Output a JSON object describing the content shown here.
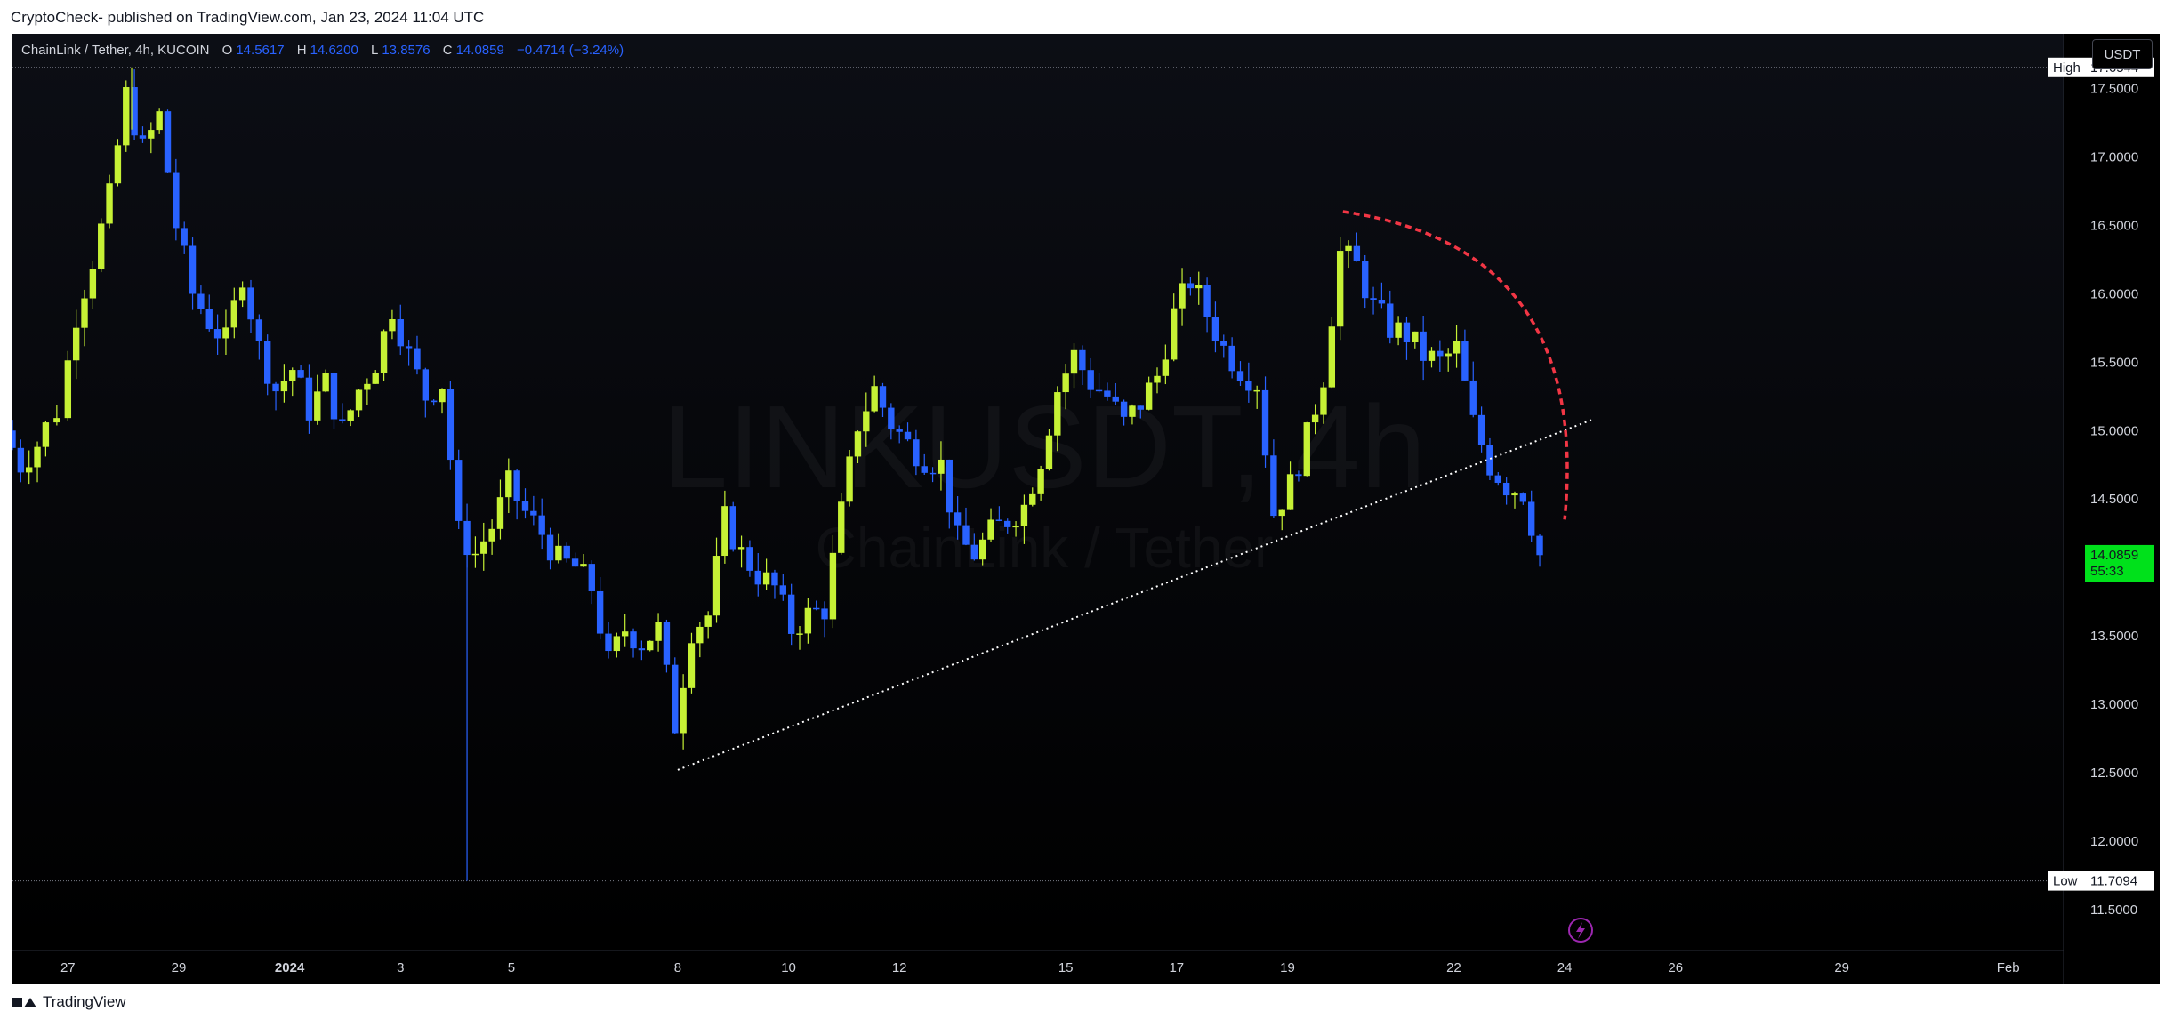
{
  "header": {
    "caption": "CryptoCheck- published on TradingView.com, Jan 23, 2024 11:04 UTC"
  },
  "footer": {
    "brand": "TradingView"
  },
  "symbol_bar": {
    "name": "ChainLink / Tether, 4h, KUCOIN",
    "o_label": "O",
    "o_value": "14.5617",
    "h_label": "H",
    "h_value": "14.6200",
    "l_label": "L",
    "l_value": "13.8576",
    "c_label": "C",
    "c_value": "14.0859",
    "change": "−0.4714 (−3.24%)"
  },
  "currency_button": "USDT",
  "watermark": {
    "ticker": "LINKUSDT, 4h",
    "subtitle": "ChainLink / Tether"
  },
  "colors": {
    "up": "#c6f135",
    "down": "#2962ff",
    "background": "#000000",
    "trendline": "#ffffff",
    "arc": "#f23645",
    "last_price_bg": "#00e11b",
    "highlow_label_bg": "#ffffff"
  },
  "chart_data": {
    "type": "candlestick",
    "y_ticks": [
      "11.5000",
      "12.0000",
      "12.5000",
      "13.0000",
      "13.5000",
      "14.0000",
      "14.5000",
      "15.0000",
      "15.5000",
      "16.0000",
      "16.5000",
      "17.0000",
      "17.5000"
    ],
    "ylim": [
      11.2,
      17.9
    ],
    "x_ticks": [
      {
        "label": "27",
        "day": 27
      },
      {
        "label": "29",
        "day": 29
      },
      {
        "label": "2024",
        "day": 31
      },
      {
        "label": "3",
        "day": 33
      },
      {
        "label": "5",
        "day": 35
      },
      {
        "label": "8",
        "day": 38
      },
      {
        "label": "10",
        "day": 40
      },
      {
        "label": "12",
        "day": 42
      },
      {
        "label": "15",
        "day": 45
      },
      {
        "label": "17",
        "day": 47
      },
      {
        "label": "19",
        "day": 49
      },
      {
        "label": "22",
        "day": 52
      },
      {
        "label": "24",
        "day": 54
      },
      {
        "label": "26",
        "day": 56
      },
      {
        "label": "29",
        "day": 59
      },
      {
        "label": "Feb",
        "day": 62
      }
    ],
    "high_marker": {
      "label": "High",
      "value": "17.6544"
    },
    "low_marker": {
      "label": "Low",
      "value": "11.7094"
    },
    "last_price": {
      "value": "14.0859",
      "countdown": "55:33"
    },
    "trendline": {
      "from": {
        "day": 38.0,
        "price": 12.52
      },
      "to": {
        "day": 54.5,
        "price": 15.08
      }
    },
    "arc": {
      "from": {
        "day": 50.0,
        "price": 16.6
      },
      "to": {
        "day": 54.0,
        "price": 14.35
      }
    },
    "path": [
      [
        26.0,
        15.0
      ],
      [
        26.3,
        14.75
      ],
      [
        26.6,
        14.9
      ],
      [
        27.0,
        15.15
      ],
      [
        27.3,
        15.85
      ],
      [
        27.6,
        16.25
      ],
      [
        27.9,
        16.7
      ],
      [
        28.2,
        17.45
      ],
      [
        28.5,
        17.05
      ],
      [
        28.8,
        17.3
      ],
      [
        29.1,
        16.5
      ],
      [
        29.4,
        16.0
      ],
      [
        29.7,
        15.8
      ],
      [
        30.0,
        15.65
      ],
      [
        30.3,
        16.15
      ],
      [
        30.6,
        15.6
      ],
      [
        30.9,
        15.3
      ],
      [
        31.2,
        15.45
      ],
      [
        31.5,
        15.15
      ],
      [
        31.8,
        15.35
      ],
      [
        32.1,
        15.0
      ],
      [
        32.4,
        15.3
      ],
      [
        32.7,
        15.5
      ],
      [
        33.0,
        15.9
      ],
      [
        33.3,
        15.55
      ],
      [
        33.6,
        15.25
      ],
      [
        33.9,
        15.35
      ],
      [
        34.2,
        14.25
      ],
      [
        34.5,
        14.1
      ],
      [
        34.8,
        14.3
      ],
      [
        35.1,
        14.6
      ],
      [
        35.4,
        14.4
      ],
      [
        35.7,
        14.25
      ],
      [
        36.0,
        14.05
      ],
      [
        36.3,
        14.0
      ],
      [
        36.6,
        13.85
      ],
      [
        36.9,
        13.3
      ],
      [
        37.2,
        13.55
      ],
      [
        37.5,
        13.45
      ],
      [
        37.8,
        13.55
      ],
      [
        38.1,
        12.85
      ],
      [
        38.4,
        13.55
      ],
      [
        38.7,
        13.65
      ],
      [
        39.0,
        14.35
      ],
      [
        39.3,
        14.1
      ],
      [
        39.6,
        13.95
      ],
      [
        39.9,
        13.85
      ],
      [
        40.2,
        13.55
      ],
      [
        40.5,
        13.65
      ],
      [
        40.8,
        13.7
      ],
      [
        41.1,
        14.4
      ],
      [
        41.4,
        15.05
      ],
      [
        41.7,
        15.3
      ],
      [
        42.0,
        15.05
      ],
      [
        42.3,
        14.9
      ],
      [
        42.6,
        14.8
      ],
      [
        42.9,
        14.75
      ],
      [
        43.2,
        14.2
      ],
      [
        43.5,
        14.1
      ],
      [
        43.8,
        14.25
      ],
      [
        44.1,
        14.35
      ],
      [
        44.4,
        14.45
      ],
      [
        44.7,
        14.8
      ],
      [
        45.0,
        15.3
      ],
      [
        45.3,
        15.55
      ],
      [
        45.6,
        15.35
      ],
      [
        45.9,
        15.25
      ],
      [
        46.2,
        15.05
      ],
      [
        46.5,
        15.2
      ],
      [
        46.8,
        15.4
      ],
      [
        47.1,
        15.85
      ],
      [
        47.4,
        16.1
      ],
      [
        47.7,
        15.85
      ],
      [
        48.0,
        15.6
      ],
      [
        48.3,
        15.45
      ],
      [
        48.6,
        15.35
      ],
      [
        48.9,
        14.4
      ],
      [
        49.2,
        14.6
      ],
      [
        49.5,
        14.95
      ],
      [
        49.8,
        15.4
      ],
      [
        50.1,
        16.3
      ],
      [
        50.4,
        16.2
      ],
      [
        50.7,
        15.9
      ],
      [
        51.0,
        15.75
      ],
      [
        51.3,
        15.7
      ],
      [
        51.6,
        15.55
      ],
      [
        51.9,
        15.5
      ],
      [
        52.2,
        15.6
      ],
      [
        52.5,
        15.05
      ],
      [
        52.8,
        14.75
      ],
      [
        53.1,
        14.6
      ],
      [
        53.4,
        14.55
      ],
      [
        53.7,
        14.09
      ]
    ]
  }
}
